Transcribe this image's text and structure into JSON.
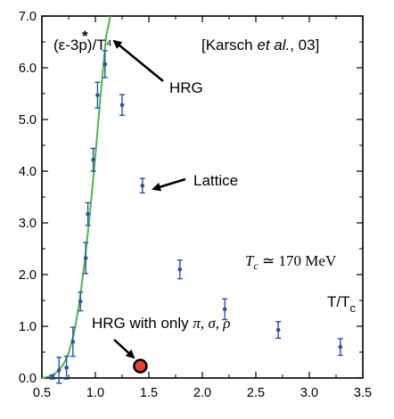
{
  "chart_data": {
    "type": "scatter",
    "xlim": [
      0.5,
      3.5
    ],
    "ylim": [
      0.0,
      7.0
    ],
    "x_ticks": [
      0.5,
      1.0,
      1.5,
      2.0,
      2.5,
      3.0,
      3.5
    ],
    "x_tick_labels": [
      "0.5",
      "1.0",
      "1.5",
      "2.0",
      "2.5",
      "3.0",
      "3.5"
    ],
    "y_ticks": [
      0.0,
      1.0,
      2.0,
      3.0,
      4.0,
      5.0,
      6.0,
      7.0
    ],
    "y_tick_labels": [
      "0.0",
      "1.0",
      "2.0",
      "3.0",
      "4.0",
      "5.0",
      "6.0",
      "7.0"
    ],
    "ylabel": "(ε-3p)/T⁴",
    "ylabel_star": "*",
    "xlabel": "T/T",
    "xlabel_sub": "c",
    "citation": {
      "prefix": "[Karsch ",
      "italic": "et al.",
      "suffix": ", 03]"
    },
    "tc_annotation": {
      "lhs": "T",
      "sub": "c",
      "rhs": " ≃ 170 MeV"
    },
    "series": [
      {
        "points": [
          {
            "x": 0.6,
            "y": 0.02,
            "err": 0.04
          },
          {
            "x": 0.66,
            "y": 0.15,
            "err": 0.25
          },
          {
            "x": 0.73,
            "y": 0.2,
            "err": 0.22
          },
          {
            "x": 0.79,
            "y": 0.7,
            "err": 0.28
          },
          {
            "x": 0.86,
            "y": 1.48,
            "err": 0.18
          },
          {
            "x": 0.91,
            "y": 2.32,
            "err": 0.3
          },
          {
            "x": 0.93,
            "y": 3.17,
            "err": 0.22
          },
          {
            "x": 0.98,
            "y": 4.22,
            "err": 0.22
          },
          {
            "x": 1.02,
            "y": 5.47,
            "err": 0.25
          },
          {
            "x": 1.09,
            "y": 6.07,
            "err": 0.26
          },
          {
            "x": 1.25,
            "y": 5.28,
            "err": 0.2
          },
          {
            "x": 1.44,
            "y": 3.72,
            "err": 0.14
          },
          {
            "x": 1.79,
            "y": 2.1,
            "err": 0.18
          },
          {
            "x": 2.21,
            "y": 1.33,
            "err": 0.2
          },
          {
            "x": 2.71,
            "y": 0.93,
            "err": 0.16
          },
          {
            "x": 3.29,
            "y": 0.6,
            "err": 0.16
          }
        ],
        "color": "#2a52a8"
      },
      {
        "name": "HRG",
        "type": "line",
        "color": "#4cb848",
        "x": [
          0.5,
          0.55,
          0.6,
          0.65,
          0.7,
          0.75,
          0.8,
          0.85,
          0.9,
          0.95,
          1.0,
          1.05,
          1.1,
          1.14
        ],
        "values": [
          0.0,
          0.02,
          0.06,
          0.13,
          0.26,
          0.48,
          0.86,
          1.45,
          2.25,
          3.2,
          4.3,
          5.5,
          6.6,
          7.0
        ]
      },
      {
        "name": "HRG with only π, σ, ρ",
        "type": "point",
        "color": "#e8412c",
        "x": 1.42,
        "y": 0.23
      }
    ],
    "annotations": [
      {
        "text": "HRG",
        "x": 1.85,
        "y": 5.85,
        "arrow_to": [
          1.16,
          6.82
        ]
      },
      {
        "text": "Lattice",
        "x": 1.68,
        "y": 4.0,
        "arrow_to": [
          1.48,
          3.72
        ]
      },
      {
        "text": "HRG with only ",
        "greek": "π, σ, ρ",
        "x": 1.3,
        "y": 1.0,
        "arrow_to": [
          1.38,
          0.34
        ]
      }
    ],
    "colors": {
      "lattice": "#2a52a8",
      "hrg_curve": "#4cb848",
      "hrg_point_fill": "#e8412c",
      "hrg_point_stroke": "#000000"
    }
  }
}
